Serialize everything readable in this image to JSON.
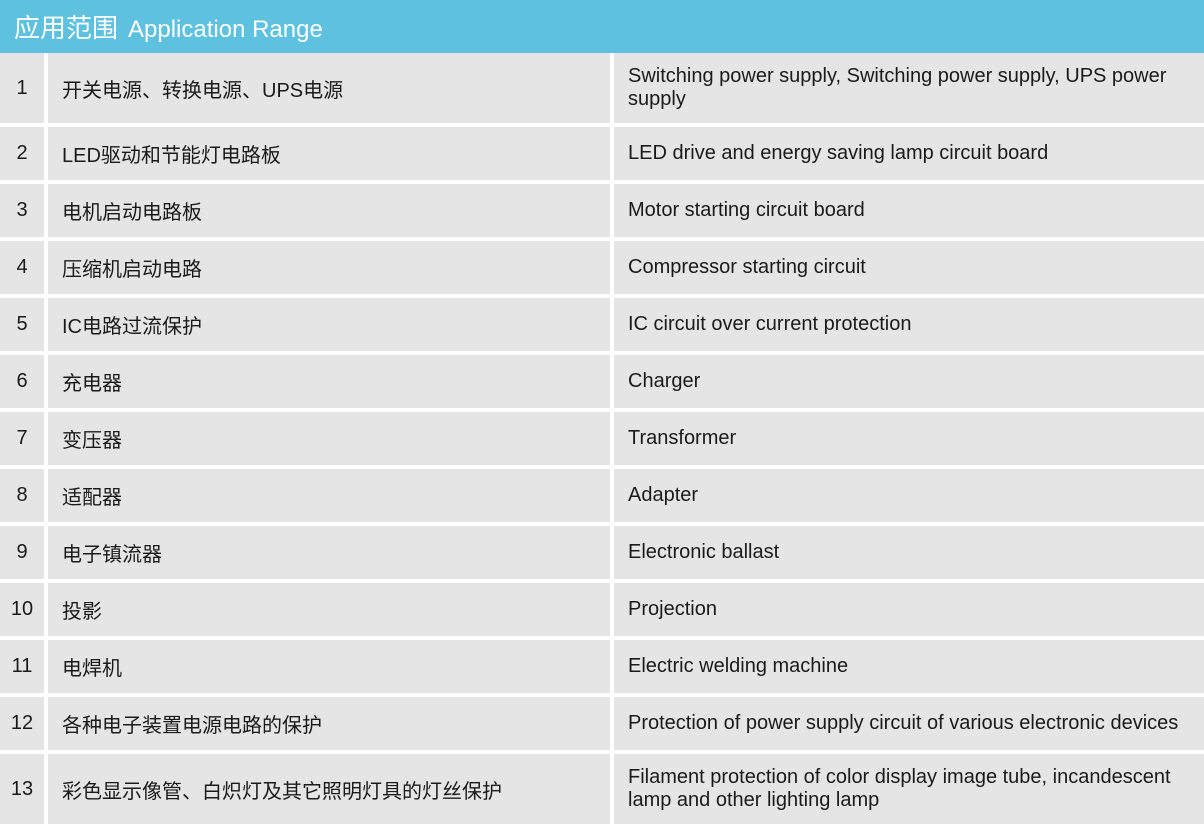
{
  "header": {
    "title_cn": "应用范围",
    "title_en": "Application Range",
    "bg_color": "#5fc1e0",
    "text_color": "#ffffff",
    "cn_fontsize": 26,
    "en_fontsize": 24
  },
  "table": {
    "row_bg_color": "#e5e5e5",
    "gap_color": "#ffffff",
    "text_color": "#1a1a1a",
    "num_fontsize": 20,
    "cn_fontsize": 20,
    "en_fontsize": 20,
    "rows": [
      {
        "num": "1",
        "cn": "开关电源、转换电源、UPS电源",
        "en": "Switching power supply, Switching power supply, UPS power supply"
      },
      {
        "num": "2",
        "cn": "LED驱动和节能灯电路板",
        "en": "LED drive and energy saving lamp circuit board"
      },
      {
        "num": "3",
        "cn": "电机启动电路板",
        "en": "Motor starting circuit board"
      },
      {
        "num": "4",
        "cn": "压缩机启动电路",
        "en": "Compressor starting circuit"
      },
      {
        "num": "5",
        "cn": "IC电路过流保护",
        "en": "IC circuit over current protection"
      },
      {
        "num": "6",
        "cn": "充电器",
        "en": "Charger"
      },
      {
        "num": "7",
        "cn": "变压器",
        "en": "Transformer"
      },
      {
        "num": "8",
        "cn": "适配器",
        "en": "Adapter"
      },
      {
        "num": "9",
        "cn": "电子镇流器",
        "en": "Electronic ballast"
      },
      {
        "num": "10",
        "cn": "投影",
        "en": "Projection"
      },
      {
        "num": "11",
        "cn": "电焊机",
        "en": "Electric welding machine"
      },
      {
        "num": "12",
        "cn": "各种电子装置电源电路的保护",
        "en": "Protection of power supply circuit of various electronic devices"
      },
      {
        "num": "13",
        "cn": "彩色显示像管、白炽灯及其它照明灯具的灯丝保护",
        "en": "Filament protection of color display image tube, incandescent lamp and other lighting lamp"
      }
    ]
  }
}
